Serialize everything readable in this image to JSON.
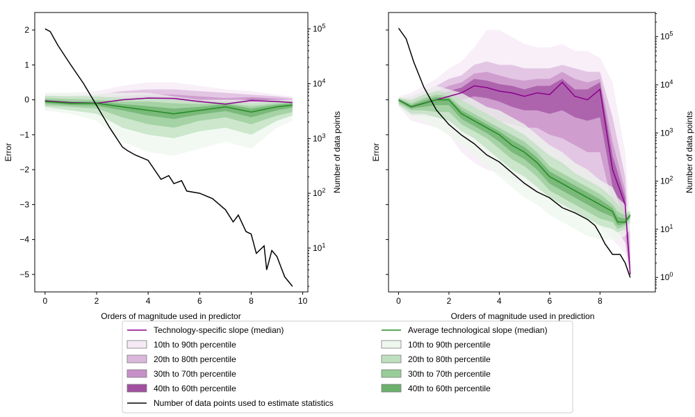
{
  "colors": {
    "specific": "#8b008b",
    "average": "#228b22",
    "count": "#000000",
    "specific_bands": [
      "#f6eaf6",
      "#dcb8dc",
      "#c890c8",
      "#a150a1"
    ],
    "average_bands": [
      "#eef7ee",
      "#bfe0bf",
      "#98cc98",
      "#6cb06c"
    ]
  },
  "legend": {
    "left": [
      {
        "label": "Technology-specific slope (median)",
        "kind": "line",
        "color": "#8b008b"
      },
      {
        "label": "10th to 90th percentile",
        "kind": "patch",
        "color": "#f6eaf6"
      },
      {
        "label": "20th to 80th percentile",
        "kind": "patch",
        "color": "#dcb8dc"
      },
      {
        "label": "30th to 70th percentile",
        "kind": "patch",
        "color": "#c890c8"
      },
      {
        "label": "40th to 60th percentile",
        "kind": "patch",
        "color": "#a150a1"
      },
      {
        "label": "Number of data points used to estimate statistics",
        "kind": "line",
        "color": "#000000"
      }
    ],
    "right": [
      {
        "label": "Average technological slope (median)",
        "kind": "line",
        "color": "#228b22"
      },
      {
        "label": "10th to 90th percentile",
        "kind": "patch",
        "color": "#eef7ee"
      },
      {
        "label": "20th to 80th percentile",
        "kind": "patch",
        "color": "#bfe0bf"
      },
      {
        "label": "30th to 70th percentile",
        "kind": "patch",
        "color": "#98cc98"
      },
      {
        "label": "40th to 60th percentile",
        "kind": "patch",
        "color": "#6cb06c"
      }
    ]
  },
  "chart_data": [
    {
      "type": "line",
      "xlabel": "Orders of magnitude used in predictor",
      "ylabel": "Error",
      "y2label": "Number of data points",
      "xlim": [
        -0.4,
        10.2
      ],
      "ylim": [
        -5.5,
        2.5
      ],
      "y2lim_log10": [
        0.2,
        5.3
      ],
      "xticks": [
        "0",
        "2",
        "4",
        "6",
        "8",
        "10"
      ],
      "yticks": [
        "2",
        "1",
        "0",
        "−1",
        "−2",
        "−3",
        "−4",
        "−5"
      ],
      "y2ticks": [
        "10^1",
        "10^2",
        "10^3",
        "10^4",
        "10^5"
      ],
      "series": [
        {
          "key": "specific",
          "x": [
            0,
            1,
            2,
            3,
            4,
            5,
            6,
            7,
            8,
            9,
            9.6
          ],
          "median": [
            -0.03,
            -0.08,
            -0.1,
            0.0,
            0.05,
            0.04,
            -0.05,
            -0.12,
            -0.02,
            -0.05,
            -0.08
          ],
          "bands": {
            "p10": [
              -0.3,
              -0.3,
              -0.4,
              -0.5,
              -0.5,
              -0.5,
              -0.5,
              -0.5,
              -0.45,
              -0.35,
              -0.3
            ],
            "p90": [
              0.2,
              0.2,
              0.25,
              0.4,
              0.5,
              0.5,
              0.4,
              0.3,
              0.25,
              0.15,
              0.1
            ],
            "p20": [
              -0.2,
              -0.2,
              -0.25,
              -0.3,
              -0.3,
              -0.3,
              -0.3,
              -0.35,
              -0.3,
              -0.25,
              -0.2
            ],
            "p80": [
              0.12,
              0.12,
              0.15,
              0.25,
              0.3,
              0.3,
              0.25,
              0.2,
              0.15,
              0.1,
              0.05
            ],
            "p30": [
              -0.12,
              -0.14,
              -0.16,
              -0.15,
              -0.12,
              -0.15,
              -0.18,
              -0.22,
              -0.15,
              -0.15,
              -0.15
            ],
            "p70": [
              0.05,
              0.04,
              0.05,
              0.12,
              0.16,
              0.15,
              0.1,
              0.05,
              0.08,
              0.04,
              0.0
            ],
            "p40": [
              -0.07,
              -0.1,
              -0.12,
              -0.05,
              0.0,
              -0.03,
              -0.1,
              -0.16,
              -0.07,
              -0.09,
              -0.11
            ],
            "p60": [
              0.01,
              -0.05,
              -0.07,
              0.05,
              0.1,
              0.09,
              0.0,
              -0.07,
              0.03,
              0.0,
              -0.04
            ]
          }
        },
        {
          "key": "average",
          "x": [
            0,
            1,
            2,
            3,
            4,
            5,
            6,
            7,
            8,
            9,
            9.6
          ],
          "median": [
            -0.05,
            -0.1,
            -0.1,
            -0.2,
            -0.3,
            -0.4,
            -0.3,
            -0.2,
            -0.35,
            -0.2,
            -0.15
          ],
          "bands": {
            "p10": [
              -0.3,
              -0.4,
              -0.6,
              -1.2,
              -1.5,
              -1.6,
              -1.4,
              -1.2,
              -1.4,
              -0.8,
              -0.6
            ],
            "p90": [
              0.2,
              0.2,
              0.2,
              0.2,
              0.2,
              0.1,
              0.0,
              0.0,
              0.0,
              0.0,
              0.0
            ],
            "p20": [
              -0.2,
              -0.3,
              -0.4,
              -0.8,
              -1.0,
              -1.1,
              -0.9,
              -0.8,
              -1.0,
              -0.6,
              -0.45
            ],
            "p80": [
              0.12,
              0.1,
              0.1,
              0.05,
              0.05,
              0.0,
              -0.05,
              -0.05,
              -0.1,
              -0.05,
              -0.05
            ],
            "p30": [
              -0.15,
              -0.2,
              -0.25,
              -0.5,
              -0.7,
              -0.8,
              -0.6,
              -0.5,
              -0.7,
              -0.45,
              -0.35
            ],
            "p70": [
              0.05,
              0.02,
              0.0,
              -0.05,
              -0.05,
              -0.1,
              -0.12,
              -0.1,
              -0.18,
              -0.1,
              -0.08
            ],
            "p40": [
              -0.1,
              -0.15,
              -0.17,
              -0.3,
              -0.45,
              -0.55,
              -0.42,
              -0.32,
              -0.5,
              -0.3,
              -0.22
            ],
            "p60": [
              0.0,
              -0.05,
              -0.05,
              -0.12,
              -0.18,
              -0.25,
              -0.2,
              -0.12,
              -0.25,
              -0.14,
              -0.1
            ]
          }
        },
        {
          "key": "count",
          "axis": "y2",
          "x": [
            0,
            0.2,
            0.5,
            1,
            1.5,
            2,
            2.5,
            3,
            3.2,
            3.5,
            4,
            4.5,
            4.8,
            5,
            5.3,
            5.5,
            6,
            6.5,
            7,
            7.3,
            7.5,
            7.8,
            8,
            8.2,
            8.5,
            8.6,
            8.8,
            9,
            9.3,
            9.6
          ],
          "values": [
            100000,
            90000,
            50000,
            22000,
            10000,
            4000,
            1600,
            700,
            600,
            500,
            400,
            180,
            210,
            150,
            170,
            110,
            100,
            80,
            50,
            30,
            40,
            20,
            18,
            8,
            11,
            4,
            9,
            7,
            3,
            2
          ]
        }
      ]
    },
    {
      "type": "line",
      "xlabel": "Orders of magnitude used in prediction",
      "ylabel": "Error",
      "y2label": "Number of data points",
      "xlim": [
        -0.4,
        10.2
      ],
      "ylim": [
        -5.5,
        2.5
      ],
      "y2lim_log10": [
        -0.3,
        5.5
      ],
      "xticks": [
        "0",
        "2",
        "4",
        "6",
        "8"
      ],
      "yticks": [],
      "y2ticks": [
        "10^0",
        "10^1",
        "10^2",
        "10^3",
        "10^4",
        "10^5"
      ],
      "series": [
        {
          "key": "specific",
          "x": [
            0,
            0.5,
            1,
            1.5,
            2,
            2.5,
            3,
            3.5,
            4,
            4.5,
            5,
            5.5,
            6,
            6.5,
            7,
            7.5,
            8,
            8.5,
            9,
            9.2
          ],
          "median": [
            0,
            -0.2,
            -0.1,
            0.0,
            0.1,
            0.2,
            0.4,
            0.35,
            0.25,
            0.2,
            0.1,
            0.2,
            0.15,
            0.5,
            0.1,
            0.0,
            0.3,
            -2.0,
            -3.0,
            -5.0
          ],
          "bands": {
            "p10": [
              -0.2,
              -0.6,
              -0.7,
              -0.8,
              -1.0,
              -1.5,
              -1.8,
              -2.0,
              -2.1,
              -2.3,
              -2.5,
              -2.6,
              -2.8,
              -3.0,
              -3.2,
              -3.4,
              -3.6,
              -4.0,
              -4.4,
              -5.0
            ],
            "p90": [
              0.1,
              0.2,
              0.4,
              0.6,
              0.9,
              1.1,
              1.5,
              2.0,
              2.0,
              1.8,
              1.6,
              1.5,
              1.5,
              1.6,
              1.4,
              1.4,
              1.2,
              0.5,
              -1.5,
              -3.5
            ],
            "p20": [
              -0.12,
              -0.45,
              -0.45,
              -0.5,
              -0.6,
              -0.8,
              -0.9,
              -1.0,
              -1.2,
              -1.3,
              -1.5,
              -1.6,
              -1.8,
              -1.9,
              -2.2,
              -2.4,
              -2.5,
              -3.5,
              -4.1,
              -5.0
            ],
            "p80": [
              0.05,
              0.1,
              0.25,
              0.4,
              0.6,
              0.7,
              1.0,
              1.1,
              1.0,
              1.0,
              0.9,
              0.9,
              0.9,
              1.0,
              0.9,
              0.8,
              0.8,
              -0.5,
              -2.2,
              -4.0
            ],
            "p30": [
              -0.07,
              -0.33,
              -0.3,
              -0.25,
              -0.3,
              -0.4,
              -0.4,
              -0.5,
              -0.6,
              -0.7,
              -0.8,
              -0.8,
              -1.0,
              -1.1,
              -1.3,
              -1.5,
              -1.5,
              -3.0,
              -3.8,
              -5.0
            ],
            "p70": [
              0.02,
              0.0,
              0.12,
              0.25,
              0.4,
              0.5,
              0.75,
              0.8,
              0.7,
              0.6,
              0.55,
              0.6,
              0.6,
              0.8,
              0.6,
              0.5,
              0.6,
              -1.2,
              -2.6,
              -4.5
            ],
            "p40": [
              -0.03,
              -0.26,
              -0.18,
              -0.1,
              -0.05,
              0.0,
              0.1,
              0.05,
              -0.05,
              -0.2,
              -0.3,
              -0.3,
              -0.4,
              -0.3,
              -0.5,
              -0.6,
              -0.5,
              -2.5,
              -3.4,
              -5.0
            ],
            "p60": [
              0.01,
              -0.12,
              0.0,
              0.12,
              0.25,
              0.35,
              0.6,
              0.55,
              0.45,
              0.4,
              0.3,
              0.4,
              0.4,
              0.6,
              0.3,
              0.3,
              0.5,
              -1.6,
              -2.8,
              -4.8
            ]
          }
        },
        {
          "key": "average",
          "x": [
            0,
            0.5,
            1,
            1.5,
            2,
            2.5,
            3,
            3.5,
            4,
            4.5,
            5,
            5.5,
            6,
            6.5,
            7,
            7.5,
            8,
            8.5,
            8.7,
            9,
            9.2
          ],
          "median": [
            0,
            -0.2,
            -0.1,
            0.0,
            0.0,
            -0.4,
            -0.6,
            -0.8,
            -1.0,
            -1.3,
            -1.5,
            -1.8,
            -2.2,
            -2.4,
            -2.6,
            -2.8,
            -3.0,
            -3.2,
            -3.5,
            -3.5,
            -3.3
          ],
          "bands": {
            "p10": [
              -0.2,
              -0.5,
              -0.6,
              -0.8,
              -1.0,
              -1.3,
              -1.6,
              -1.9,
              -2.2,
              -2.5,
              -2.8,
              -3.0,
              -3.3,
              -3.5,
              -3.7,
              -3.9,
              -4.0,
              -4.0,
              -4.0,
              -3.9,
              -3.7
            ],
            "p90": [
              0.1,
              0.1,
              0.3,
              0.4,
              0.3,
              0.2,
              0.0,
              -0.2,
              -0.3,
              -0.5,
              -0.7,
              -1.0,
              -1.3,
              -1.5,
              -1.8,
              -2.0,
              -2.3,
              -2.5,
              -2.8,
              -3.0,
              -3.1
            ],
            "p20": [
              -0.15,
              -0.4,
              -0.4,
              -0.5,
              -0.6,
              -0.9,
              -1.1,
              -1.4,
              -1.7,
              -2.0,
              -2.2,
              -2.5,
              -2.8,
              -3.0,
              -3.2,
              -3.4,
              -3.6,
              -3.7,
              -3.8,
              -3.7,
              -3.5
            ],
            "p80": [
              0.06,
              0.0,
              0.15,
              0.25,
              0.2,
              0.0,
              -0.2,
              -0.4,
              -0.6,
              -0.8,
              -1.0,
              -1.3,
              -1.6,
              -1.8,
              -2.1,
              -2.3,
              -2.5,
              -2.8,
              -3.0,
              -3.2,
              -3.2
            ],
            "p30": [
              -0.1,
              -0.3,
              -0.3,
              -0.35,
              -0.35,
              -0.7,
              -0.9,
              -1.1,
              -1.4,
              -1.7,
              -1.9,
              -2.2,
              -2.6,
              -2.8,
              -3.0,
              -3.2,
              -3.4,
              -3.5,
              -3.7,
              -3.6,
              -3.4
            ],
            "p70": [
              0.04,
              -0.1,
              0.05,
              0.15,
              0.1,
              -0.2,
              -0.4,
              -0.6,
              -0.8,
              -1.0,
              -1.2,
              -1.5,
              -1.9,
              -2.1,
              -2.3,
              -2.5,
              -2.7,
              -3.0,
              -3.2,
              -3.3,
              -3.25
            ],
            "p40": [
              -0.05,
              -0.25,
              -0.2,
              -0.15,
              -0.15,
              -0.55,
              -0.75,
              -0.95,
              -1.2,
              -1.5,
              -1.7,
              -2.0,
              -2.4,
              -2.6,
              -2.8,
              -3.0,
              -3.2,
              -3.35,
              -3.6,
              -3.55,
              -3.35
            ],
            "p60": [
              0.02,
              -0.15,
              -0.02,
              0.08,
              0.05,
              -0.3,
              -0.5,
              -0.7,
              -0.9,
              -1.15,
              -1.35,
              -1.65,
              -2.05,
              -2.25,
              -2.45,
              -2.65,
              -2.85,
              -3.1,
              -3.35,
              -3.4,
              -3.3
            ]
          }
        },
        {
          "key": "count",
          "axis": "y2",
          "x": [
            0,
            0.3,
            0.6,
            1,
            1.5,
            2,
            2.5,
            3,
            3.5,
            4,
            4.5,
            5,
            5.5,
            6,
            6.5,
            7,
            7.5,
            7.8,
            8,
            8.2,
            8.5,
            8.8,
            9,
            9.2
          ],
          "values": [
            150000,
            90000,
            30000,
            9000,
            3000,
            1500,
            900,
            600,
            350,
            250,
            150,
            90,
            60,
            45,
            28,
            22,
            16,
            12,
            8,
            5,
            3,
            3,
            2,
            1
          ]
        }
      ]
    }
  ]
}
